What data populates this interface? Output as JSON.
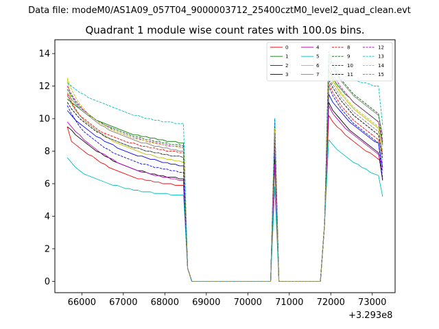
{
  "suptitle": "Data file: modeM0/AS1A09_057T04_9000003712_25400cztM0_level2_quad_clean.evt",
  "chart_data": {
    "type": "line",
    "title": "Quadrant 1 module wise count rates with 100.0s bins.",
    "xlabel": "",
    "ylabel": "",
    "x_offset_label": "+3.293e8",
    "xlim": [
      65350,
      73550
    ],
    "ylim": [
      -0.7,
      14.85
    ],
    "xticks": [
      66000,
      67000,
      68000,
      69000,
      70000,
      71000,
      72000,
      73000
    ],
    "xtick_labels": [
      "66000",
      "67000",
      "68000",
      "69000",
      "70000",
      "71000",
      "72000",
      "73000"
    ],
    "yticks": [
      0,
      2,
      4,
      6,
      8,
      10,
      12,
      14
    ],
    "ytick_labels": [
      "0",
      "2",
      "4",
      "6",
      "8",
      "10",
      "12",
      "14"
    ],
    "grid": false,
    "legend_position": "top-right",
    "segments_x": {
      "start": 65650,
      "step": 100,
      "gap_ranges": [
        [
          68550,
          68650
        ],
        [
          70550,
          70750
        ],
        [
          71750,
          71950
        ]
      ]
    },
    "series": [
      {
        "name": "0",
        "color": "#ff0000",
        "dash": "solid",
        "seg1": [
          9.5,
          8.6,
          8.4,
          8.2,
          8.0,
          7.8,
          7.7,
          7.5,
          7.3,
          7.2,
          7.0,
          6.9,
          6.8,
          6.7,
          6.6,
          6.5,
          6.4,
          6.3,
          6.3,
          6.2,
          6.2,
          6.1,
          6.1,
          6.0,
          6.0,
          6.0,
          5.9,
          5.9,
          5.9
        ],
        "peak": 8.0,
        "seg3": [
          10.2,
          9.8,
          9.5,
          9.3,
          9.0,
          8.8,
          8.6,
          8.4,
          8.2,
          8.0,
          7.9,
          7.7,
          7.5,
          7.3
        ]
      },
      {
        "name": "1",
        "color": "#008000",
        "dash": "solid",
        "seg1": [
          11.2,
          11.0,
          10.8,
          10.6,
          10.4,
          10.2,
          10.1,
          9.9,
          9.8,
          9.7,
          9.6,
          9.5,
          9.4,
          9.3,
          9.2,
          9.1,
          9.0,
          9.0,
          8.9,
          8.9,
          8.8,
          8.8,
          8.7,
          8.7,
          8.6,
          8.6,
          8.6,
          8.5,
          8.5
        ],
        "peak": 9.0,
        "seg3": [
          13.0,
          12.5,
          12.1,
          11.8,
          11.5,
          11.3,
          11.0,
          10.8,
          10.6,
          10.4,
          10.2,
          10.0,
          9.8,
          8.4
        ]
      },
      {
        "name": "2",
        "color": "#0000ff",
        "dash": "solid",
        "seg1": [
          10.5,
          10.2,
          9.9,
          9.7,
          9.5,
          9.3,
          9.1,
          8.9,
          8.8,
          8.6,
          8.5,
          8.4,
          8.2,
          8.1,
          8.0,
          7.9,
          7.8,
          7.7,
          7.7,
          7.6,
          7.5,
          7.5,
          7.4,
          7.3,
          7.3,
          7.2,
          7.2,
          7.1,
          7.1
        ],
        "peak": 8.3,
        "seg3": [
          11.5,
          11.0,
          10.7,
          10.4,
          10.1,
          9.8,
          9.6,
          9.4,
          9.2,
          9.0,
          8.8,
          8.6,
          8.5,
          7.0
        ]
      },
      {
        "name": "3",
        "color": "#000000",
        "dash": "solid",
        "seg1": [
          9.5,
          9.3,
          9.0,
          8.8,
          8.6,
          8.4,
          8.2,
          8.0,
          7.9,
          7.7,
          7.6,
          7.4,
          7.3,
          7.2,
          7.1,
          7.0,
          6.9,
          6.8,
          6.8,
          6.7,
          6.6,
          6.6,
          6.5,
          6.5,
          6.4,
          6.4,
          6.4,
          6.3,
          6.3
        ],
        "peak": 7.5,
        "seg3": [
          11.0,
          10.5,
          10.2,
          9.9,
          9.6,
          9.3,
          9.1,
          8.9,
          8.7,
          8.5,
          8.3,
          8.1,
          7.9,
          6.2
        ]
      },
      {
        "name": "4",
        "color": "#bf00bf",
        "dash": "solid",
        "seg1": [
          9.8,
          9.5,
          9.2,
          9.0,
          8.7,
          8.5,
          8.3,
          8.1,
          7.9,
          7.8,
          7.6,
          7.5,
          7.3,
          7.2,
          7.1,
          7.0,
          6.9,
          6.8,
          6.7,
          6.7,
          6.6,
          6.5,
          6.5,
          6.4,
          6.4,
          6.3,
          6.3,
          6.2,
          6.2
        ],
        "peak": 7.2,
        "seg3": [
          10.8,
          10.3,
          10.0,
          9.7,
          9.4,
          9.2,
          9.0,
          8.8,
          8.6,
          8.4,
          8.2,
          8.0,
          7.8,
          6.8
        ]
      },
      {
        "name": "5",
        "color": "#00bfbf",
        "dash": "solid",
        "seg1": [
          7.6,
          7.3,
          7.0,
          6.8,
          6.6,
          6.5,
          6.4,
          6.3,
          6.2,
          6.1,
          6.0,
          5.9,
          5.9,
          5.8,
          5.7,
          5.7,
          5.6,
          5.6,
          5.5,
          5.5,
          5.5,
          5.4,
          5.4,
          5.4,
          5.4,
          5.3,
          5.3,
          5.3,
          5.3
        ],
        "peak": 5.8,
        "seg3": [
          8.7,
          8.4,
          8.1,
          7.9,
          7.7,
          7.5,
          7.3,
          7.2,
          7.0,
          6.9,
          6.7,
          6.6,
          6.5,
          5.2
        ]
      },
      {
        "name": "6",
        "color": "#bfbf00",
        "dash": "solid",
        "seg1": [
          12.4,
          11.0,
          10.5,
          10.2,
          9.9,
          9.7,
          9.5,
          9.3,
          9.1,
          8.9,
          8.8,
          8.6,
          8.5,
          8.4,
          8.3,
          8.2,
          8.1,
          8.0,
          7.9,
          7.8,
          7.8,
          7.7,
          7.6,
          7.6,
          7.5,
          7.5,
          7.4,
          7.4,
          7.3
        ],
        "peak": 8.8,
        "seg3": [
          12.8,
          12.3,
          11.9,
          11.5,
          11.2,
          10.9,
          10.6,
          10.4,
          10.2,
          10.0,
          9.8,
          9.6,
          9.4,
          7.8
        ]
      },
      {
        "name": "7",
        "color": "#808080",
        "dash": "solid",
        "seg1": [
          11.6,
          11.2,
          10.9,
          10.6,
          10.4,
          10.2,
          10.0,
          9.8,
          9.6,
          9.5,
          9.3,
          9.2,
          9.1,
          9.0,
          8.9,
          8.8,
          8.7,
          8.6,
          8.5,
          8.5,
          8.4,
          8.3,
          8.3,
          8.2,
          8.2,
          8.1,
          8.1,
          8.0,
          8.0
        ],
        "peak": 9.3,
        "seg3": [
          13.6,
          13.1,
          12.7,
          12.3,
          12.0,
          11.7,
          11.4,
          11.2,
          11.0,
          10.8,
          10.6,
          10.4,
          10.2,
          9.0
        ]
      },
      {
        "name": "8",
        "color": "#ff0000",
        "dash": "dashed",
        "seg1": [
          11.5,
          11.0,
          10.6,
          10.2,
          10.0,
          9.8,
          9.6,
          9.4,
          9.2,
          9.1,
          9.0,
          8.9,
          8.8,
          8.7,
          8.6,
          8.5,
          8.5,
          8.4,
          8.3,
          8.3,
          8.2,
          8.2,
          8.1,
          8.1,
          8.0,
          8.0,
          8.0,
          7.9,
          7.9
        ],
        "peak": 8.9,
        "seg3": [
          12.2,
          11.6,
          11.2,
          10.8,
          10.5,
          10.2,
          9.9,
          9.7,
          9.5,
          9.3,
          9.1,
          8.9,
          8.7,
          7.8
        ]
      },
      {
        "name": "9",
        "color": "#006400",
        "dash": "dashed",
        "seg1": [
          11.8,
          11.4,
          11.0,
          10.7,
          10.5,
          10.3,
          10.1,
          9.9,
          9.8,
          9.6,
          9.5,
          9.4,
          9.3,
          9.2,
          9.1,
          9.0,
          8.9,
          8.9,
          8.8,
          8.7,
          8.7,
          8.6,
          8.6,
          8.5,
          8.5,
          8.4,
          8.4,
          8.4,
          8.3
        ],
        "peak": 9.5,
        "seg3": [
          14.1,
          13.3,
          12.8,
          12.4,
          12.1,
          11.8,
          11.5,
          11.3,
          11.1,
          10.9,
          10.7,
          10.5,
          10.3,
          8.6
        ]
      },
      {
        "name": "10",
        "color": "#0000ff",
        "dash": "dashed",
        "seg1": [
          10.8,
          10.3,
          9.9,
          9.5,
          9.2,
          9.0,
          8.8,
          8.6,
          8.4,
          8.2,
          8.1,
          7.9,
          7.8,
          7.7,
          7.6,
          7.5,
          7.4,
          7.3,
          7.2,
          7.2,
          7.1,
          7.0,
          7.0,
          6.9,
          6.9,
          6.8,
          6.8,
          6.7,
          6.7
        ],
        "peak": 10.0,
        "seg3": [
          12.0,
          11.4,
          11.0,
          10.6,
          10.3,
          10.0,
          9.7,
          9.5,
          9.3,
          9.1,
          8.9,
          8.7,
          8.5,
          6.3
        ]
      },
      {
        "name": "11",
        "color": "#000000",
        "dash": "dashed",
        "seg1": [
          11.0,
          10.6,
          10.3,
          10.0,
          9.8,
          9.6,
          9.4,
          9.2,
          9.1,
          8.9,
          8.8,
          8.7,
          8.6,
          8.5,
          8.4,
          8.3,
          8.2,
          8.2,
          8.1,
          8.0,
          8.0,
          7.9,
          7.9,
          7.8,
          7.8,
          7.7,
          7.7,
          7.7,
          7.6
        ],
        "peak": 9.0,
        "seg3": [
          12.4,
          11.9,
          11.5,
          11.1,
          10.8,
          10.5,
          10.2,
          10.0,
          9.8,
          9.6,
          9.4,
          9.2,
          9.0,
          7.5
        ]
      },
      {
        "name": "12",
        "color": "#bf00bf",
        "dash": "dashed",
        "seg1": [
          12.0,
          11.5,
          11.1,
          10.8,
          10.5,
          10.3,
          10.1,
          9.9,
          9.7,
          9.6,
          9.5,
          9.3,
          9.2,
          9.1,
          9.0,
          8.9,
          8.8,
          8.8,
          8.7,
          8.6,
          8.6,
          8.5,
          8.5,
          8.4,
          8.4,
          8.3,
          8.3,
          8.3,
          8.2
        ],
        "peak": 9.2,
        "seg3": [
          13.3,
          12.7,
          12.3,
          11.9,
          11.6,
          11.3,
          11.0,
          10.8,
          10.6,
          10.4,
          10.2,
          10.0,
          9.8,
          8.5
        ]
      },
      {
        "name": "13",
        "color": "#00bfbf",
        "dash": "dashed",
        "seg1": [
          12.2,
          12.0,
          11.8,
          11.6,
          11.5,
          11.3,
          11.2,
          11.1,
          11.0,
          10.9,
          10.8,
          10.7,
          10.6,
          10.5,
          10.4,
          10.3,
          10.2,
          10.2,
          10.1,
          10.0,
          10.0,
          9.9,
          9.9,
          9.8,
          9.8,
          9.8,
          9.7,
          9.7,
          9.7
        ],
        "peak": 10.0,
        "seg3": [
          13.8,
          13.3,
          13.0,
          12.8,
          12.6,
          12.5,
          12.4,
          12.3,
          12.2,
          12.2,
          12.1,
          12.0,
          12.0,
          9.6
        ]
      },
      {
        "name": "14",
        "color": "#bfbf00",
        "dash": "dashed",
        "seg1": [
          12.5,
          11.8,
          11.3,
          10.9,
          10.6,
          10.3,
          10.1,
          9.9,
          9.7,
          9.6,
          9.4,
          9.3,
          9.2,
          9.1,
          9.0,
          8.9,
          8.8,
          8.7,
          8.7,
          8.6,
          8.5,
          8.5,
          8.4,
          8.4,
          8.3,
          8.3,
          8.3,
          8.2,
          8.2
        ],
        "peak": 9.4,
        "seg3": [
          12.9,
          12.4,
          12.0,
          11.6,
          11.3,
          11.0,
          10.7,
          10.5,
          10.3,
          10.1,
          9.9,
          9.7,
          9.5,
          8.3
        ]
      },
      {
        "name": "15",
        "color": "#808080",
        "dash": "dashed",
        "seg1": [
          11.4,
          10.9,
          10.5,
          10.2,
          9.9,
          9.7,
          9.5,
          9.3,
          9.1,
          9.0,
          8.8,
          8.7,
          8.6,
          8.5,
          8.4,
          8.3,
          8.2,
          8.2,
          8.1,
          8.0,
          8.0,
          7.9,
          7.9,
          7.8,
          7.8,
          7.7,
          7.7,
          7.7,
          7.6
        ],
        "peak": 9.1,
        "seg3": [
          12.6,
          12.1,
          11.7,
          11.3,
          11.0,
          10.7,
          10.4,
          10.2,
          10.0,
          9.8,
          9.6,
          9.4,
          9.2,
          8.0
        ]
      }
    ]
  }
}
